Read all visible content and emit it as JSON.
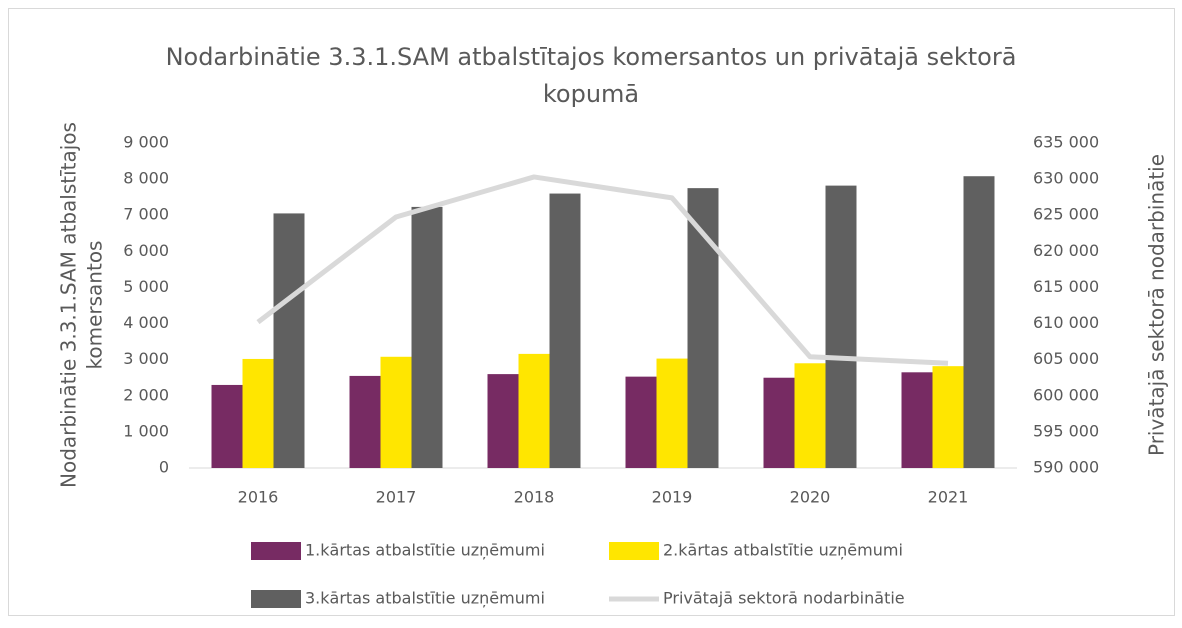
{
  "chart_data": {
    "type": "bar",
    "title": [
      "Nodarbinātie 3.3.1.SAM atbalstītajos komersantos un privātajā sektorā",
      "kopumā"
    ],
    "ylabel": [
      "Nodarbinātie 3.3.1.SAM atbalstītajos",
      "komersantos"
    ],
    "y2label": "Privātajā sektorā nodarbinātie",
    "categories": [
      "2016",
      "2017",
      "2018",
      "2019",
      "2020",
      "2021"
    ],
    "series": [
      {
        "name": "1.kārtas atbalstītie uzņēmumi",
        "color": "#772b63",
        "type": "bar",
        "values": [
          2300,
          2550,
          2600,
          2530,
          2500,
          2650
        ]
      },
      {
        "name": "2.kārtas atbalstītie uzņēmumi",
        "color": "#ffe600",
        "type": "bar",
        "values": [
          3020,
          3080,
          3160,
          3030,
          2900,
          2820
        ]
      },
      {
        "name": "3.kārtas atbalstītie uzņēmumi",
        "color": "#606060",
        "type": "bar",
        "values": [
          7050,
          7230,
          7600,
          7750,
          7820,
          8080
        ]
      },
      {
        "name": "Privātajā sektorā nodarbinātie",
        "color": "#d9d9d9",
        "type": "line",
        "axis": "y2",
        "values": [
          610200,
          624750,
          630300,
          627400,
          605400,
          604500
        ]
      }
    ],
    "ylim": [
      0,
      9000
    ],
    "yticks": [
      0,
      {
        "value": 1000,
        "label": "1 000"
      },
      {
        "value": 2000,
        "label": "2 000"
      },
      {
        "value": 3000,
        "label": "3 000"
      },
      {
        "value": 4000,
        "label": "4 000"
      },
      {
        "value": 5000,
        "label": "5 000"
      },
      {
        "value": 6000,
        "label": "6 000"
      },
      {
        "value": 7000,
        "label": "7 000"
      },
      {
        "value": 8000,
        "label": "8 000"
      },
      {
        "value": 9000,
        "label": "9 000"
      }
    ],
    "y2lim": [
      590000,
      635000
    ],
    "y2ticks": [
      {
        "value": 590000,
        "label": "590 000"
      },
      {
        "value": 595000,
        "label": "595 000"
      },
      {
        "value": 600000,
        "label": "600 000"
      },
      {
        "value": 605000,
        "label": "605 000"
      },
      {
        "value": 610000,
        "label": "610 000"
      },
      {
        "value": 615000,
        "label": "615 000"
      },
      {
        "value": 620000,
        "label": "620 000"
      },
      {
        "value": 625000,
        "label": "625 000"
      },
      {
        "value": 630000,
        "label": "630 000"
      },
      {
        "value": 635000,
        "label": "635 000"
      }
    ],
    "grid": false,
    "legend": "bottom"
  }
}
